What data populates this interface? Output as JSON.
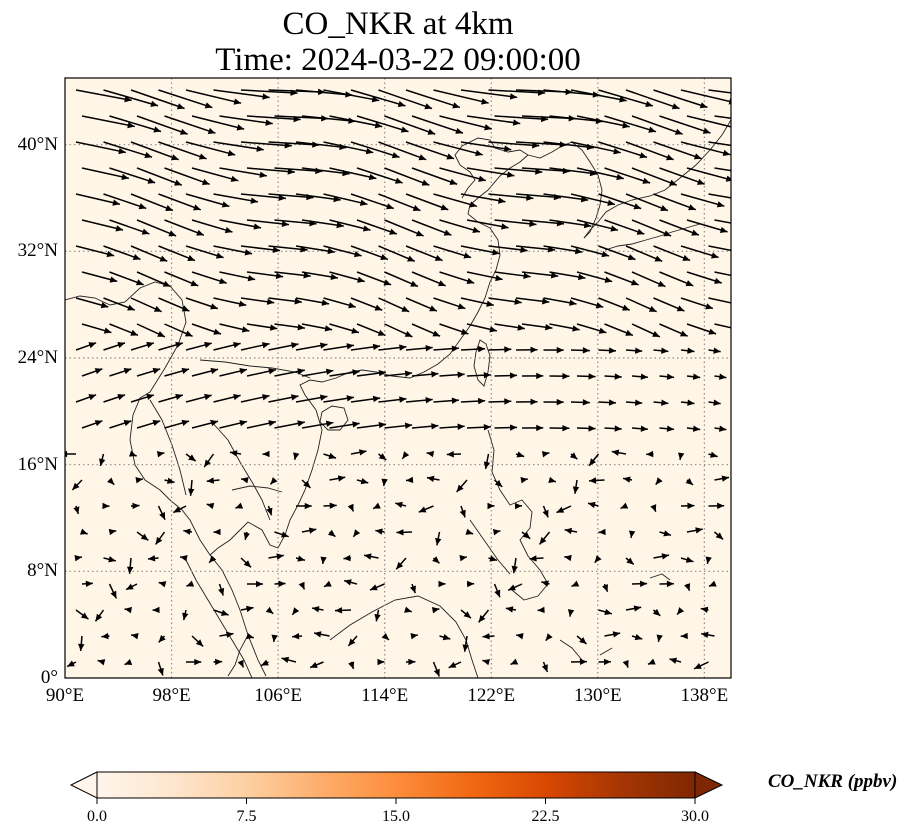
{
  "title": {
    "line1": "CO_NKR at 4km",
    "line2": "Time: 2024-03-22 09:00:00"
  },
  "map": {
    "extent": {
      "lon_min": 90,
      "lon_max": 140,
      "lat_min": 0,
      "lat_max": 45
    },
    "lat_ticks": [
      {
        "value": 0,
        "label": "0°"
      },
      {
        "value": 8,
        "label": "8°N"
      },
      {
        "value": 16,
        "label": "16°N"
      },
      {
        "value": 24,
        "label": "24°N"
      },
      {
        "value": 32,
        "label": "32°N"
      },
      {
        "value": 40,
        "label": "40°N"
      }
    ],
    "lon_ticks": [
      {
        "value": 90,
        "label": "90°E"
      },
      {
        "value": 98,
        "label": "98°E"
      },
      {
        "value": 106,
        "label": "106°E"
      },
      {
        "value": 114,
        "label": "114°E"
      },
      {
        "value": 122,
        "label": "122°E"
      },
      {
        "value": 130,
        "label": "130°E"
      },
      {
        "value": 138,
        "label": "138°E"
      }
    ],
    "background_color": "#fff6e8",
    "gridline_color": "#8c8c8c",
    "coastline_color": "#222222",
    "vector_color": "#000000"
  },
  "colorbar": {
    "label": "CO_NKR (ppbv)",
    "min": 0,
    "max": 30,
    "ticks": [
      {
        "value": 0,
        "label": "0.0"
      },
      {
        "value": 7.5,
        "label": "7.5"
      },
      {
        "value": 15,
        "label": "15.0"
      },
      {
        "value": 22.5,
        "label": "22.5"
      },
      {
        "value": 30,
        "label": "30.0"
      }
    ],
    "colormap": [
      "#fff5eb",
      "#fee6ce",
      "#fdd0a2",
      "#fdae6b",
      "#fd8d3c",
      "#f16913",
      "#d94801",
      "#a63603",
      "#7f2704"
    ],
    "extend": "both"
  }
}
